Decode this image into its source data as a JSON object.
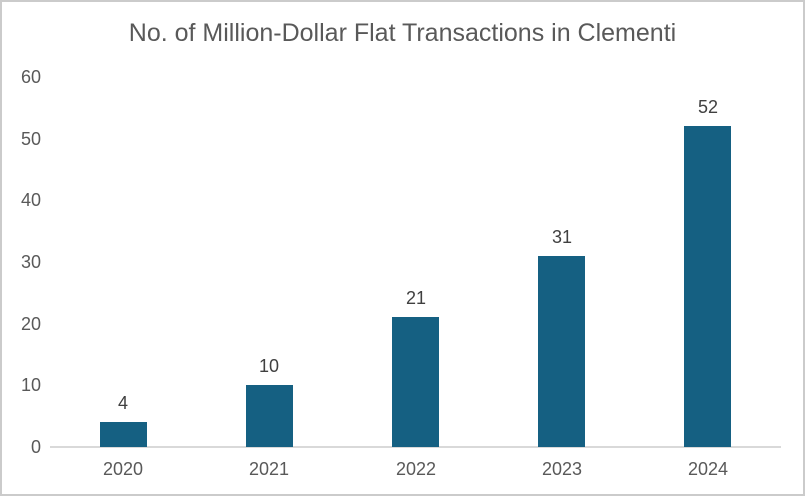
{
  "chart_data": {
    "type": "bar",
    "title": "No. of Million-Dollar Flat Transactions in Clementi",
    "categories": [
      "2020",
      "2021",
      "2022",
      "2023",
      "2024"
    ],
    "values": [
      4,
      10,
      21,
      31,
      52
    ],
    "data_labels": [
      "4",
      "10",
      "21",
      "31",
      "52"
    ],
    "xlabel": "",
    "ylabel": "",
    "ylim": [
      0,
      60
    ],
    "yticks": [
      0,
      10,
      20,
      30,
      40,
      50,
      60
    ],
    "grid": false,
    "legend": "none",
    "colors": {
      "bar": "#156082",
      "title": "#595959",
      "axis_labels": "#595959",
      "data_labels": "#404040",
      "axis_line": "#d9d9d9",
      "frame_border": "#cbcbcb",
      "background": "#ffffff"
    }
  }
}
